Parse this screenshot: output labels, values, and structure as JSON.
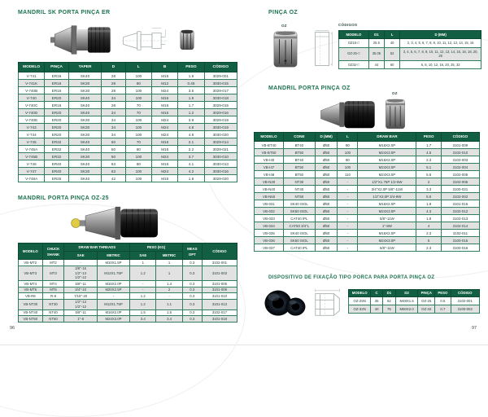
{
  "page": {
    "left_number": "96",
    "right_number": "97",
    "accent_green": "#135f43",
    "title_green": "#1c7350"
  },
  "illustrations": {
    "sk_chuck": "er-collet-chuck-photo",
    "sk_drawing": "chuck-technical-drawing",
    "er_collet": "er-collet-photo",
    "oz25_chuck": "oz25-collet-chuck-photo",
    "oz_collet": "oz-collet-photo",
    "oz_drawing": "oz-collet-dimension-drawing",
    "porta_oz_chuck": "oz-collet-chuck-photo",
    "oz_collet_small": "oz-collet-photo",
    "nuts": "clamping-nuts-photo",
    "nut_drawing": "nut-section-drawing"
  },
  "sections": {
    "sk_er": {
      "title": "MANDRIL SK PORTA PINÇA ER",
      "table": {
        "headers": [
          "MODELO",
          "PINÇA",
          "TAPER",
          "D",
          "L",
          "B",
          "PESO",
          "CÓDIGO"
        ],
        "rows": [
          [
            "V-741",
            "ER16",
            "SK40",
            "28",
            "100",
            "M16",
            "1.9",
            "3029-001"
          ],
          [
            "V-741K",
            "ER16",
            "SK30",
            "28",
            "80",
            "M12",
            "0.45",
            "3030-015"
          ],
          [
            "V-740B",
            "ER16",
            "SK30",
            "28",
            "100",
            "M24",
            "3.5",
            "3029-017"
          ],
          [
            "V-740",
            "ER20",
            "SK40",
            "34",
            "100",
            "M16",
            "1.9",
            "3030-018"
          ],
          [
            "V-740C",
            "ER16",
            "SK40",
            "28",
            "70",
            "M16",
            "1.7",
            "3029-015"
          ],
          [
            "V-740D",
            "ER20",
            "SK40",
            "34",
            "70",
            "M16",
            "1.2",
            "3029-016"
          ],
          [
            "V-740E",
            "ER20",
            "SK30",
            "34",
            "100",
            "M24",
            "3.9",
            "3029-019"
          ],
          [
            "V-743",
            "ER20",
            "SK30",
            "34",
            "100",
            "M24",
            "4.8",
            "3030-019"
          ],
          [
            "V-744",
            "ER20",
            "SK30",
            "34",
            "100",
            "M24",
            "4.8",
            "3030-020"
          ],
          [
            "V-745",
            "ER32",
            "SK40",
            "50",
            "70",
            "M16",
            "2.1",
            "3029-014"
          ],
          [
            "V-745A",
            "ER32",
            "SK40",
            "50",
            "80",
            "M16",
            "2.2",
            "3029-021"
          ],
          [
            "V-745B",
            "ER32",
            "SK30",
            "50",
            "100",
            "M24",
            "3.7",
            "3030-010"
          ],
          [
            "V-746",
            "ER40",
            "SK40",
            "63",
            "80",
            "M16",
            "4.1",
            "3030-013"
          ],
          [
            "V-747",
            "ER40",
            "SK30",
            "63",
            "100",
            "M24",
            "4.2",
            "3030-016"
          ],
          [
            "V-748A",
            "ER25",
            "SK40",
            "42",
            "100",
            "M16",
            "1.8",
            "3029-020"
          ]
        ]
      }
    },
    "oz25": {
      "title": "MANDRIL PORTA PINÇA OZ-25",
      "header": {
        "modelo": "MODELO",
        "chuck_shank": "CHUCK\nSHANK",
        "draw_bar_threads": "DRAW BAR THREADS",
        "peso_kg": "PESO (KG)",
        "sae": "SAE",
        "metric": "METRIC",
        "meas_opt": "MEAS\nOPT",
        "codigo": "CÓDIGO"
      },
      "rows": [
        [
          "VB-MT2",
          "MT2",
          "-",
          "M10X1.5P",
          "1",
          "1",
          "0.3",
          "3102-001"
        ],
        [
          "VB-MT3",
          "MT3",
          "3/8\"-16\n1/2\"-13\n1/2\"-12",
          "M12X1.75P",
          "1.2",
          "1",
          "0.3",
          "3101-003"
        ],
        [
          "VB-MT4",
          "MT4",
          "5/8\"-11",
          "M16X2.0P",
          "-",
          "1.4",
          "0.3",
          "3101-005"
        ],
        [
          "VB-MT5",
          "MT5",
          "3/4\"-10",
          "M20X2.5P",
          "-",
          "2",
          "0.3",
          "3101-008"
        ],
        [
          "VB-R8",
          "R-8",
          "7/16\"-20",
          "-",
          "1.2",
          "-",
          "0.3",
          "3101-010"
        ],
        [
          "VB-NT30",
          "NT30",
          "1/2\"-13\n1/2\"-12",
          "M12X1.75P",
          "1.2",
          "1.1",
          "0.3",
          "3101-013"
        ],
        [
          "VB-NT40",
          "NT40",
          "5/8\"-11",
          "M16X2.0P",
          "1.5",
          "1.5",
          "0.3",
          "3102-017"
        ],
        [
          "VB-NT50",
          "NT50",
          "1\"-8",
          "M24X3.0P",
          "3.4",
          "3.4",
          "0.3",
          "3101-018"
        ]
      ]
    },
    "pinca_oz": {
      "title": "PINÇA OZ",
      "oz_label": "OZ",
      "codigos_label": "CÓDIGOS",
      "table": {
        "headers": [
          "MODELO",
          "D1",
          "L",
          "D (MM)"
        ],
        "rows": [
          [
            "OZ16-□",
            "25.5",
            "40",
            "2, 3, 4, 5, 6, 7, 8, 9, 10, 11, 12, 13, 14, 15, 16"
          ],
          [
            "OZ-25-□",
            "35.05",
            "52",
            "3, 4, 5, 6, 7, 8, 9, 10, 11, 12, 13, 14, 15, 16, 18, 20, 25"
          ],
          [
            "OZ32-□",
            "44",
            "60",
            "6, 8, 10, 12, 16, 20, 25, 32"
          ]
        ]
      }
    },
    "porta_oz": {
      "title": "MANDRIL PORTA PINÇA OZ",
      "oz_label": "OZ",
      "table": {
        "headers": [
          "MODELO",
          "CONE",
          "D (MM)",
          "L",
          "DRAW BAR",
          "PESO",
          "CÓDIGO"
        ],
        "rows": [
          [
            "VB-BT40",
            "BT40",
            "Ø50",
            "80",
            "M16X2.0P",
            "1.7",
            "3101-009"
          ],
          [
            "VB-BT50",
            "BT50",
            "Ø50",
            "100",
            "M24X3.0P",
            "4.5",
            "3102-010"
          ],
          [
            "VB-I40",
            "BT40",
            "Ø50",
            "80",
            "M16X2.0P",
            "2.3",
            "3102-003"
          ],
          [
            "VB-I47",
            "BT50",
            "Ø50",
            "100",
            "M24X3.0P",
            "5.1",
            "3102-004"
          ],
          [
            "VB-I48",
            "BT50",
            "Ø50",
            "110",
            "M24X3.0P",
            "5.5",
            "3102-005"
          ],
          [
            "VB-N30",
            "NT30",
            "Ø50",
            "-",
            "1/2\"X1.75P 1/2-6W",
            "2",
            "3102-006"
          ],
          [
            "VB-N40",
            "NT40",
            "Ø50",
            "-",
            "3/4\"X2.0P 5/8\"-11W",
            "3.3",
            "3100-021"
          ],
          [
            "VB-N50",
            "NT50",
            "Ø50",
            "-",
            "1/2\"X3.0P 3/4-8W",
            "5.5",
            "3102-002"
          ],
          [
            "VB-031",
            "SK40 ISOL",
            "Ø50",
            "-",
            "M16X2.0P",
            "1.9",
            "3101-015"
          ],
          [
            "VB-032",
            "SK50 ISOL",
            "Ø50",
            "-",
            "M24X3.0P",
            "4.3",
            "3102-012"
          ],
          [
            "VB-033",
            "CAT40 IPL",
            "Ø50",
            "-",
            "5/8\"-11W",
            "1.9",
            "3102-013"
          ],
          [
            "VB-034",
            "CAT50 3/4\"L",
            "Ø50",
            "-",
            "1\"-8W",
            "4",
            "3102-014"
          ],
          [
            "VB-035",
            "SK40 ISOL",
            "Ø50",
            "-",
            "M16X2.0P",
            "2.3",
            "3102-011"
          ],
          [
            "VB-036",
            "SK50 ISOL",
            "Ø50",
            "-",
            "M24X3.0P",
            "5",
            "3100-015"
          ],
          [
            "VB-037",
            "CAT40 IPL",
            "Ø50",
            "-",
            "5/8\"-11W",
            "2.3",
            "3100-016"
          ]
        ]
      }
    },
    "dispositivo": {
      "title": "DISPOSITIVO DE FIXAÇÃO TIPO PORCA PARA PORTA PINÇA OZ",
      "table": {
        "headers": [
          "MODELO",
          "C",
          "D1",
          "D2",
          "PINÇA",
          "PESO",
          "CÓDIGO"
        ],
        "rows": [
          [
            "OZ-25N",
            "35",
            "62",
            "M48X1.5",
            "OZ-25",
            "0.5",
            "3102-001"
          ],
          [
            "OZ-32N",
            "40",
            "75",
            "M60X2.0",
            "OZ-32",
            "0.7",
            "3100-002"
          ]
        ]
      }
    }
  }
}
